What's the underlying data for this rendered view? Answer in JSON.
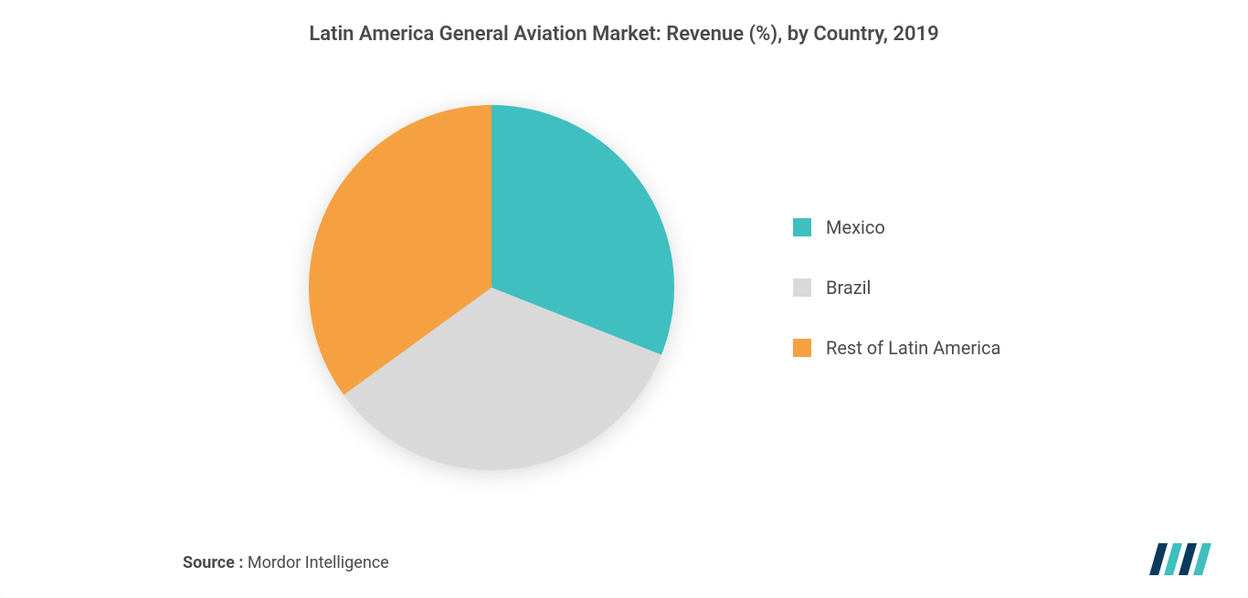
{
  "chart": {
    "type": "pie",
    "title": "Latin America General Aviation Market: Revenue (%), by Country, 2019",
    "title_fontsize": 22,
    "title_color": "#4a4a4a",
    "background_color": "#ffffff",
    "pie_radius": 200,
    "slices": [
      {
        "label": "Mexico",
        "value": 31,
        "color": "#3fbfbf"
      },
      {
        "label": "Brazil",
        "value": 34,
        "color": "#d9d9d9"
      },
      {
        "label": "Rest of Latin America",
        "value": 35,
        "color": "#f5a142"
      }
    ],
    "legend": {
      "position": "right",
      "swatch_size": 20,
      "label_fontsize": 20,
      "label_color": "#4a4a4a",
      "gap": 42
    },
    "shadow": "0 4px 12px rgba(0,0,0,0.15)"
  },
  "source": {
    "prefix": "Source :",
    "text": "Mordor Intelligence",
    "fontsize": 18,
    "color": "#4a4a4a"
  },
  "logo": {
    "name": "mordor-intelligence-logo",
    "primary_color": "#0a3a5c",
    "accent_color": "#3fbfbf"
  }
}
